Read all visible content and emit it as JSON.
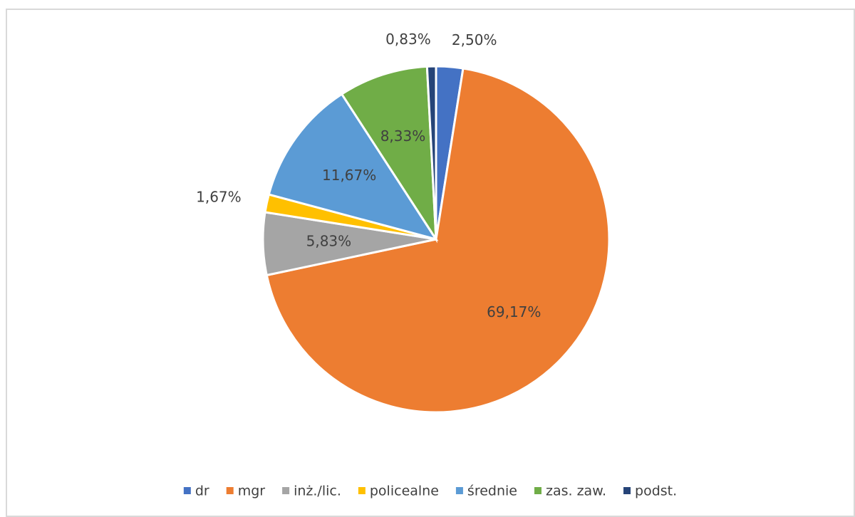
{
  "chart_data": {
    "type": "pie",
    "categories": [
      "dr",
      "mgr",
      "inż./lic.",
      "policealne",
      "średnie",
      "zas. zaw.",
      "podst."
    ],
    "values": [
      2.5,
      69.17,
      5.83,
      1.67,
      11.67,
      8.33,
      0.83
    ],
    "value_labels": [
      "2,50%",
      "69,17%",
      "5,83%",
      "1,67%",
      "11,67%",
      "8,33%",
      "0,83%"
    ],
    "colors": [
      "#4472c4",
      "#ed7d31",
      "#a5a5a5",
      "#ffc000",
      "#5b9bd5",
      "#70ad47",
      "#264478"
    ],
    "legend": "bottom"
  }
}
